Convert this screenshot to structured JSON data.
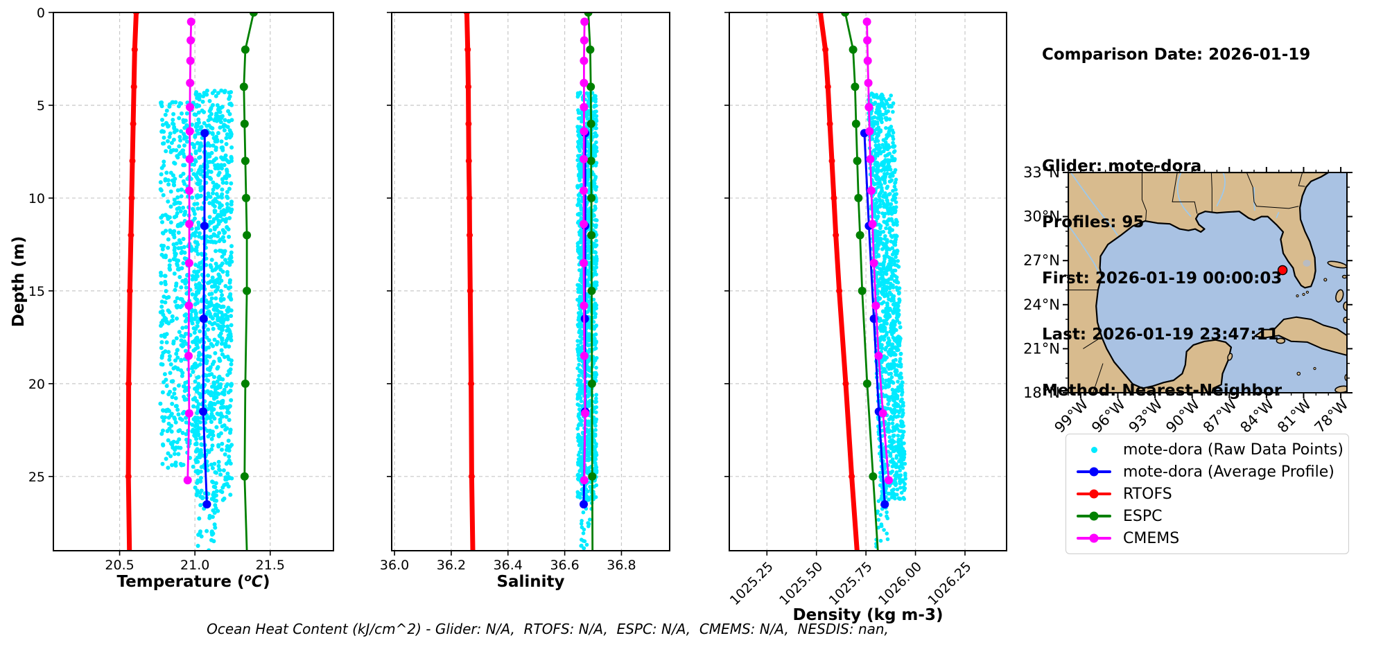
{
  "info_panel": {
    "comparison_date": "Comparison Date: 2026-01-19",
    "glider": "Glider: mote-dora",
    "profiles": "Profiles: 95",
    "first": "First: 2026-01-19 00:00:03",
    "last": "Last: 2026-01-19 23:47:11",
    "method": "Method: Nearest-Neighbor"
  },
  "footer_note": "Ocean Heat Content (kJ/cm^2) - Glider: N/A,  RTOFS: N/A,  ESPC: N/A,  CMEMS: N/A,  NESDIS: nan,",
  "legend": {
    "items": [
      {
        "label": "mote-dora (Raw Data Points)",
        "color": "#00eaff",
        "type": "dot"
      },
      {
        "label": "mote-dora (Average Profile)",
        "color": "#0000ff",
        "type": "line"
      },
      {
        "label": "RTOFS",
        "color": "#ff0000",
        "type": "line"
      },
      {
        "label": "ESPC",
        "color": "#008000",
        "type": "line"
      },
      {
        "label": "CMEMS",
        "color": "#ff00ff",
        "type": "line"
      }
    ]
  },
  "colors": {
    "raw_points": "#00eaff",
    "glider_avg": "#0000ff",
    "rtofs": "#ff0000",
    "espc": "#008000",
    "cmems": "#ff00ff",
    "grid": "#c8c8c8"
  },
  "depth_axis": {
    "label": "Depth (m)",
    "range": [
      0,
      29
    ],
    "ticks": [
      0,
      5,
      10,
      15,
      20,
      25
    ]
  },
  "chart_data": [
    {
      "type": "scatter",
      "name": "temperature-profile",
      "xlabel": "Temperature (oC)",
      "xlabel_rich": [
        {
          "t": "Temperature ("
        },
        {
          "t": "o",
          "dy": -8,
          "size": 15,
          "italic": true
        },
        {
          "t": "C",
          "dy": 8,
          "size": 22,
          "italic": true
        },
        {
          "t": ")",
          "dy": 0
        }
      ],
      "x_range": [
        20.06,
        21.92
      ],
      "x_ticks": [
        {
          "v": 20.5,
          "label": "20.5"
        },
        {
          "v": 21.0,
          "label": "21.0"
        },
        {
          "v": 21.5,
          "label": "21.5"
        }
      ],
      "rotate_x_labels": false,
      "raw_scatter": {
        "name": "mote-dora (Raw Data Points)",
        "color": "#00eaff",
        "r": 3.0,
        "seed": 7,
        "clusters": [
          {
            "n": 900,
            "x": [
              21.0,
              21.245
            ],
            "d": [
              4.2,
              26.3
            ]
          },
          {
            "n": 560,
            "x": [
              20.77,
              21.03
            ],
            "d": [
              4.8,
              24.8
            ]
          },
          {
            "n": 30,
            "x": [
              21.02,
              21.16
            ],
            "d": [
              26.0,
              29.0
            ]
          }
        ]
      },
      "series": [
        {
          "name": "mote-dora (Average Profile)",
          "color": "#0000ff",
          "lw": 3,
          "ms": 6,
          "points": [
            [
              21.065,
              6.5
            ],
            [
              21.063,
              11.5
            ],
            [
              21.058,
              16.5
            ],
            [
              21.055,
              21.5
            ],
            [
              21.08,
              26.5
            ]
          ]
        },
        {
          "name": "RTOFS",
          "color": "#ff0000",
          "lw": 7,
          "ms": 4.5,
          "skip_last_marker": true,
          "points": [
            [
              20.61,
              0
            ],
            [
              20.6,
              2
            ],
            [
              20.595,
              4
            ],
            [
              20.59,
              6
            ],
            [
              20.585,
              8
            ],
            [
              20.58,
              10
            ],
            [
              20.575,
              12
            ],
            [
              20.568,
              15
            ],
            [
              20.56,
              20
            ],
            [
              20.558,
              25
            ],
            [
              20.565,
              29
            ]
          ]
        },
        {
          "name": "ESPC",
          "color": "#008000",
          "lw": 2.8,
          "ms": 6,
          "skip_last_marker": true,
          "points": [
            [
              21.39,
              0
            ],
            [
              21.335,
              2
            ],
            [
              21.325,
              4
            ],
            [
              21.33,
              6
            ],
            [
              21.335,
              8
            ],
            [
              21.34,
              10
            ],
            [
              21.345,
              12
            ],
            [
              21.345,
              15
            ],
            [
              21.335,
              20
            ],
            [
              21.33,
              25
            ],
            [
              21.345,
              29
            ]
          ]
        },
        {
          "name": "CMEMS",
          "color": "#ff00ff",
          "lw": 2.8,
          "ms": 6,
          "points": [
            [
              20.975,
              0.5
            ],
            [
              20.972,
              1.5
            ],
            [
              20.97,
              2.6
            ],
            [
              20.968,
              3.8
            ],
            [
              20.967,
              5.1
            ],
            [
              20.966,
              6.4
            ],
            [
              20.965,
              7.9
            ],
            [
              20.963,
              9.6
            ],
            [
              20.963,
              11.4
            ],
            [
              20.962,
              13.5
            ],
            [
              20.96,
              15.8
            ],
            [
              20.958,
              18.5
            ],
            [
              20.962,
              21.6
            ],
            [
              20.952,
              25.2
            ]
          ]
        }
      ]
    },
    {
      "type": "scatter",
      "name": "salinity-profile",
      "xlabel": "Salinity",
      "x_range": [
        35.99,
        36.97
      ],
      "x_ticks": [
        {
          "v": 36.0,
          "label": "36.0"
        },
        {
          "v": 36.2,
          "label": "36.2"
        },
        {
          "v": 36.4,
          "label": "36.4"
        },
        {
          "v": 36.6,
          "label": "36.6"
        },
        {
          "v": 36.8,
          "label": "36.8"
        }
      ],
      "rotate_x_labels": false,
      "raw_scatter": {
        "name": "mote-dora (Raw Data Points)",
        "color": "#00eaff",
        "r": 2.8,
        "seed": 11,
        "clusters": [
          {
            "n": 1300,
            "x": [
              36.645,
              36.713
            ],
            "d": [
              4.3,
              26.3
            ]
          },
          {
            "n": 24,
            "x": [
              36.655,
              36.697
            ],
            "d": [
              26.0,
              29.0
            ]
          }
        ]
      },
      "series": [
        {
          "name": "mote-dora (Average Profile)",
          "color": "#0000ff",
          "lw": 3,
          "ms": 6,
          "points": [
            [
              36.672,
              6.5
            ],
            [
              36.672,
              11.5
            ],
            [
              36.671,
              16.5
            ],
            [
              36.672,
              21.5
            ],
            [
              36.667,
              26.5
            ]
          ]
        },
        {
          "name": "RTOFS",
          "color": "#ff0000",
          "lw": 7,
          "ms": 4.5,
          "skip_last_marker": true,
          "points": [
            [
              36.255,
              0
            ],
            [
              36.258,
              2
            ],
            [
              36.26,
              4
            ],
            [
              36.261,
              6
            ],
            [
              36.262,
              8
            ],
            [
              36.264,
              10
            ],
            [
              36.265,
              12
            ],
            [
              36.267,
              15
            ],
            [
              36.27,
              20
            ],
            [
              36.272,
              25
            ],
            [
              36.276,
              29
            ]
          ]
        },
        {
          "name": "ESPC",
          "color": "#008000",
          "lw": 2.8,
          "ms": 6,
          "skip_last_marker": true,
          "points": [
            [
              36.683,
              0
            ],
            [
              36.69,
              2
            ],
            [
              36.692,
              4
            ],
            [
              36.693,
              6
            ],
            [
              36.693,
              8
            ],
            [
              36.694,
              10
            ],
            [
              36.694,
              12
            ],
            [
              36.695,
              15
            ],
            [
              36.696,
              20
            ],
            [
              36.697,
              25
            ],
            [
              36.698,
              29
            ]
          ]
        },
        {
          "name": "CMEMS",
          "color": "#ff00ff",
          "lw": 2.8,
          "ms": 6,
          "points": [
            [
              36.67,
              0.5
            ],
            [
              36.669,
              1.5
            ],
            [
              36.668,
              2.6
            ],
            [
              36.668,
              3.8
            ],
            [
              36.668,
              5.1
            ],
            [
              36.668,
              6.4
            ],
            [
              36.667,
              7.9
            ],
            [
              36.667,
              9.6
            ],
            [
              36.667,
              11.4
            ],
            [
              36.667,
              13.5
            ],
            [
              36.668,
              15.8
            ],
            [
              36.669,
              18.5
            ],
            [
              36.672,
              21.6
            ],
            [
              36.669,
              25.2
            ]
          ]
        }
      ]
    },
    {
      "type": "scatter",
      "name": "density-profile",
      "xlabel": "Density (kg m-3)",
      "x_range": [
        1025.06,
        1026.46
      ],
      "x_ticks": [
        {
          "v": 1025.25,
          "label": "1025.25"
        },
        {
          "v": 1025.5,
          "label": "1025.50"
        },
        {
          "v": 1025.75,
          "label": "1025.75"
        },
        {
          "v": 1026.0,
          "label": "1026.00"
        },
        {
          "v": 1026.25,
          "label": "1026.25"
        }
      ],
      "rotate_x_labels": true,
      "raw_scatter": {
        "name": "mote-dora (Raw Data Points)",
        "color": "#00eaff",
        "r": 2.8,
        "seed": 13,
        "clusters": [
          {
            "n": 1300,
            "x": [
              1025.745,
              1025.875
            ],
            "d": [
              4.3,
              26.3
            ],
            "x_slope": 0.003
          },
          {
            "n": 26,
            "x": [
              1025.8,
              1025.86
            ],
            "d": [
              26.0,
              29.0
            ]
          }
        ]
      },
      "series": [
        {
          "name": "mote-dora (Average Profile)",
          "color": "#0000ff",
          "lw": 3,
          "ms": 6,
          "points": [
            [
              1025.742,
              6.5
            ],
            [
              1025.765,
              11.5
            ],
            [
              1025.79,
              16.5
            ],
            [
              1025.815,
              21.5
            ],
            [
              1025.845,
              26.5
            ]
          ]
        },
        {
          "name": "RTOFS",
          "color": "#ff0000",
          "lw": 7,
          "ms": 4.5,
          "skip_last_marker": true,
          "points": [
            [
              1025.52,
              0
            ],
            [
              1025.545,
              2
            ],
            [
              1025.558,
              4
            ],
            [
              1025.568,
              6
            ],
            [
              1025.578,
              8
            ],
            [
              1025.588,
              10
            ],
            [
              1025.598,
              12
            ],
            [
              1025.615,
              15
            ],
            [
              1025.648,
              20
            ],
            [
              1025.678,
              25
            ],
            [
              1025.705,
              29
            ]
          ]
        },
        {
          "name": "ESPC",
          "color": "#008000",
          "lw": 2.8,
          "ms": 6,
          "skip_last_marker": true,
          "points": [
            [
              1025.645,
              0
            ],
            [
              1025.685,
              2
            ],
            [
              1025.695,
              4
            ],
            [
              1025.7,
              6
            ],
            [
              1025.706,
              8
            ],
            [
              1025.712,
              10
            ],
            [
              1025.72,
              12
            ],
            [
              1025.731,
              15
            ],
            [
              1025.756,
              20
            ],
            [
              1025.786,
              25
            ],
            [
              1025.81,
              29
            ]
          ]
        },
        {
          "name": "CMEMS",
          "color": "#ff00ff",
          "lw": 2.8,
          "ms": 6,
          "points": [
            [
              1025.755,
              0.5
            ],
            [
              1025.757,
              1.5
            ],
            [
              1025.759,
              2.6
            ],
            [
              1025.762,
              3.8
            ],
            [
              1025.765,
              5.1
            ],
            [
              1025.768,
              6.4
            ],
            [
              1025.772,
              7.9
            ],
            [
              1025.777,
              9.6
            ],
            [
              1025.783,
              11.4
            ],
            [
              1025.79,
              13.5
            ],
            [
              1025.8,
              15.8
            ],
            [
              1025.814,
              18.5
            ],
            [
              1025.836,
              21.6
            ],
            [
              1025.865,
              25.2
            ]
          ]
        }
      ]
    },
    {
      "type": "map",
      "name": "glider-location-map",
      "region": "Gulf of Mexico",
      "lat_ticks": [
        {
          "v": 33,
          "label": "33°N"
        },
        {
          "v": 30,
          "label": "30°N"
        },
        {
          "v": 27,
          "label": "27°N"
        },
        {
          "v": 24,
          "label": "24°N"
        },
        {
          "v": 21,
          "label": "21°N"
        },
        {
          "v": 18,
          "label": "18°N"
        }
      ],
      "lon_ticks": [
        {
          "v": -99,
          "label": "99°W"
        },
        {
          "v": -96,
          "label": "96°W"
        },
        {
          "v": -93,
          "label": "93°W"
        },
        {
          "v": -90,
          "label": "90°W"
        },
        {
          "v": -87,
          "label": "87°W"
        },
        {
          "v": -84,
          "label": "84°W"
        },
        {
          "v": -81,
          "label": "81°W"
        },
        {
          "v": -78,
          "label": "78°W"
        }
      ],
      "marker": {
        "lon": -82.7,
        "lat": 26.35,
        "color": "#ff0000"
      },
      "land_color": "#d8bb8e",
      "water_color": "#a9c2e3",
      "river_color": "#9ec8ea",
      "lake_color": "#b9bcc2"
    }
  ]
}
